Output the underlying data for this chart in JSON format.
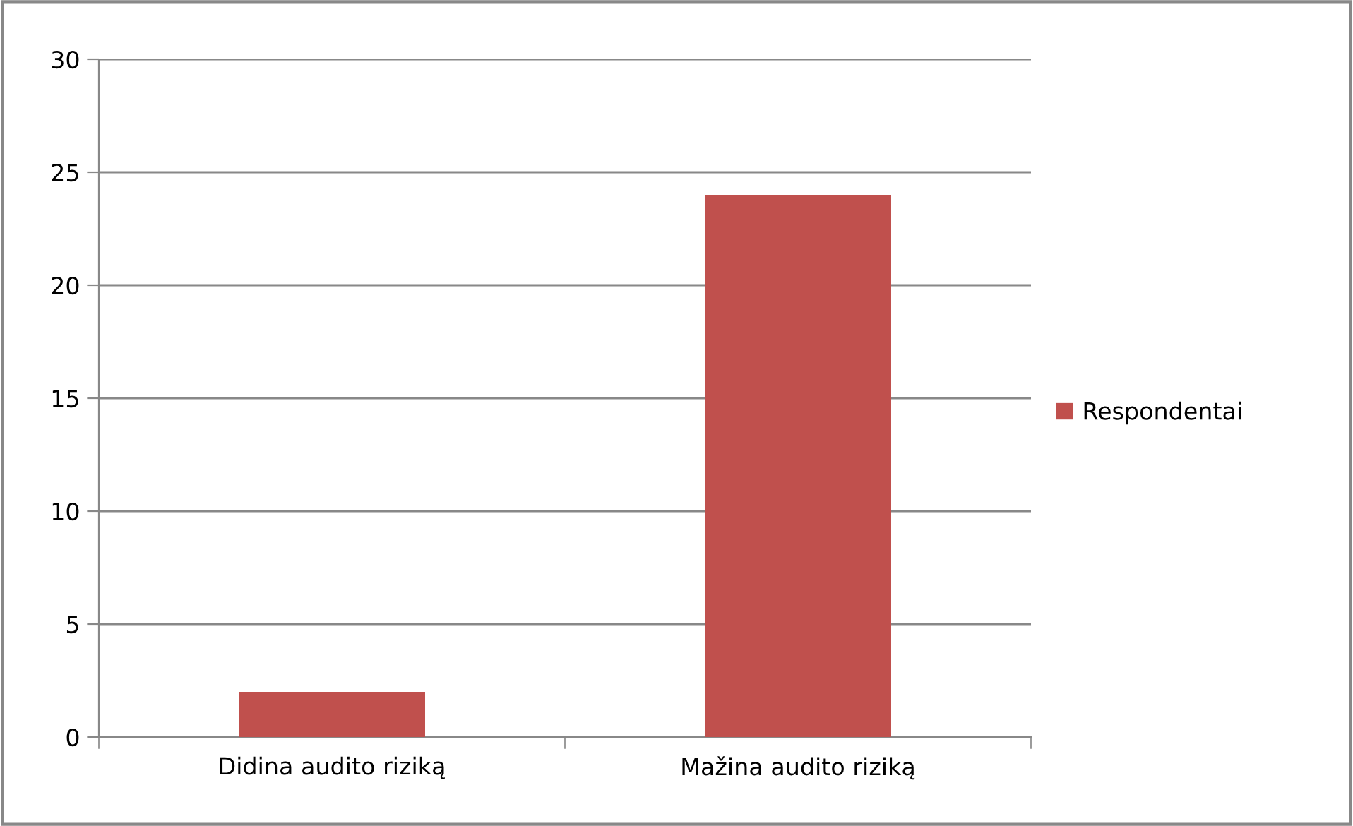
{
  "chart_data": {
    "type": "bar",
    "categories": [
      "Didina audito riziką",
      "Mažina audito riziką"
    ],
    "series": [
      {
        "name": "Respondentai",
        "color": "#c0504d",
        "values": [
          2,
          24
        ]
      }
    ],
    "ylim": [
      0,
      30
    ],
    "yticks": [
      0,
      5,
      10,
      15,
      20,
      25,
      30
    ],
    "grid": "y",
    "legend": "right"
  }
}
